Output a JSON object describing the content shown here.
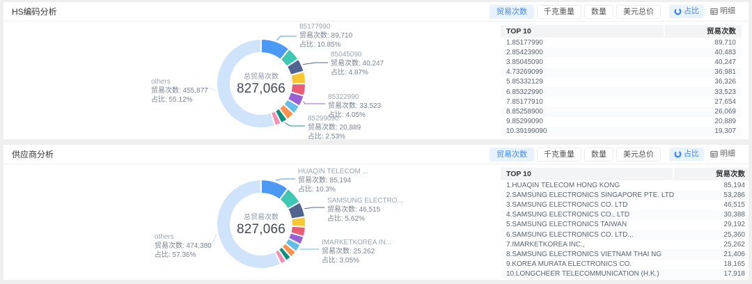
{
  "colors": {
    "accent": "#3D87F5",
    "accent_bg": "#E8F3FF",
    "others_color": "#CFE3FA",
    "palette": [
      "#4A9AF5",
      "#3EC8B4",
      "#50648F",
      "#F7C631",
      "#EB5C77",
      "#9760D3",
      "#63BEE8",
      "#F9934E",
      "#10917F",
      "#F78FB5"
    ]
  },
  "toolbar": {
    "metrics": [
      "贸易次数",
      "千克重量",
      "数量",
      "美元总价"
    ],
    "active_metric": 0,
    "views": [
      {
        "label": "占比",
        "icon": "donut-chart-icon",
        "active": true
      },
      {
        "label": "明细",
        "icon": "table-grid-icon",
        "active": false
      }
    ]
  },
  "panels": [
    {
      "title": "HS编码分析",
      "chart": {
        "center_label": "总贸易次数",
        "center_value": "827,066",
        "metric_label": "贸易次数",
        "pct_label": "占比",
        "segments": [
          {
            "name": "85177990",
            "value": 89710,
            "display_value": "89,710",
            "pct": 10.85,
            "pct_display": "10.85%",
            "color": "#4A9AF5"
          },
          {
            "name": "85423900",
            "value": 40483,
            "display_value": "40,483",
            "pct": 4.89,
            "pct_display": "4.89%",
            "color": "#3EC8B4"
          },
          {
            "name": "85045090",
            "value": 40247,
            "display_value": "40,247",
            "pct": 4.87,
            "pct_display": "4.87%",
            "color": "#50648F"
          },
          {
            "name": "73269099",
            "value": 36981,
            "display_value": "36,981",
            "pct": 4.47,
            "pct_display": "4.47%",
            "color": "#F7C631"
          },
          {
            "name": "85332129",
            "value": 36326,
            "display_value": "36,326",
            "pct": 4.39,
            "pct_display": "4.39%",
            "color": "#EB5C77"
          },
          {
            "name": "85322990",
            "value": 33523,
            "display_value": "33,523",
            "pct": 4.05,
            "pct_display": "4.05%",
            "color": "#9760D3"
          },
          {
            "name": "85177910",
            "value": 27654,
            "display_value": "27,654",
            "pct": 3.34,
            "pct_display": "3.34%",
            "color": "#63BEE8"
          },
          {
            "name": "85258900",
            "value": 26069,
            "display_value": "26,069",
            "pct": 3.15,
            "pct_display": "3.15%",
            "color": "#F9934E"
          },
          {
            "name": "85299090",
            "value": 20889,
            "display_value": "20,889",
            "pct": 2.53,
            "pct_display": "2.53%",
            "color": "#10917F"
          },
          {
            "name": "39199090",
            "value": 19307,
            "display_value": "19,307",
            "pct": 2.33,
            "pct_display": "2.33%",
            "color": "#F78FB5"
          },
          {
            "name": "others",
            "value": 455877,
            "display_value": "455,877",
            "pct": 55.12,
            "pct_display": "55.12%",
            "color": "#CFE3FA"
          }
        ],
        "callouts": [
          {
            "seg": 0,
            "display": "85177990"
          },
          {
            "seg": 2,
            "display": "85045090"
          },
          {
            "seg": 5,
            "display": "85322990"
          },
          {
            "seg": 8,
            "display": "85299090"
          },
          {
            "seg": 10,
            "display": "others"
          }
        ]
      },
      "table": {
        "header": [
          "TOP 10",
          "贸易次数"
        ],
        "rows": [
          [
            "1.85177990",
            "89,710"
          ],
          [
            "2.85423900",
            "40,483"
          ],
          [
            "3.85045090",
            "40,247"
          ],
          [
            "4.73269099",
            "36,981"
          ],
          [
            "5.85332129",
            "36,326"
          ],
          [
            "6.85322990",
            "33,523"
          ],
          [
            "7.85177910",
            "27,654"
          ],
          [
            "8.85258900",
            "26,069"
          ],
          [
            "9.85299090",
            "20,889"
          ],
          [
            "10.39199090",
            "19,307"
          ]
        ]
      }
    },
    {
      "title": "供应商分析",
      "chart": {
        "center_label": "总贸易次数",
        "center_value": "827,066",
        "metric_label": "贸易次数",
        "pct_label": "占比",
        "segments": [
          {
            "name": "HUAQIN TELECOM HONG KONG",
            "value": 85194,
            "display_value": "85,194",
            "pct": 10.3,
            "pct_display": "10.3%",
            "color": "#4A9AF5"
          },
          {
            "name": "SAMSUNG ELECTRONICS SINGAPORE PTE. LTD",
            "value": 53286,
            "display_value": "53,286",
            "pct": 6.44,
            "pct_display": "6.44%",
            "color": "#3EC8B4"
          },
          {
            "name": "SAMSUNG ELECTRONICS CO. LTD",
            "value": 46515,
            "display_value": "46,515",
            "pct": 5.62,
            "pct_display": "5.62%",
            "color": "#50648F"
          },
          {
            "name": "SAMSUNG ELECTRONICS CO., LTD",
            "value": 30388,
            "display_value": "30,388",
            "pct": 3.67,
            "pct_display": "3.67%",
            "color": "#F7C631"
          },
          {
            "name": "SAMSUNG ELECTRONICS TAIWAN",
            "value": 29192,
            "display_value": "29,192",
            "pct": 3.53,
            "pct_display": "3.53%",
            "color": "#EB5C77"
          },
          {
            "name": "SAMSUNG ELECTRONICS CO. LTD.,",
            "value": 25360,
            "display_value": "25,360",
            "pct": 3.07,
            "pct_display": "3.07%",
            "color": "#9760D3"
          },
          {
            "name": "IMARKETKOREA INC.,",
            "value": 25262,
            "display_value": "25,262",
            "pct": 3.05,
            "pct_display": "3.05%",
            "color": "#63BEE8"
          },
          {
            "name": "SAMSUNG ELECTRONICS VIETNAM THAI NG",
            "value": 21406,
            "display_value": "21,406",
            "pct": 2.59,
            "pct_display": "2.59%",
            "color": "#F9934E"
          },
          {
            "name": "KOREA MURATA ELECTRONICS CO.",
            "value": 18165,
            "display_value": "18,165",
            "pct": 2.2,
            "pct_display": "2.20%",
            "color": "#10917F"
          },
          {
            "name": "LONGCHEER TELECOMMUNICATION (H.K.)",
            "value": 17918,
            "display_value": "17,918",
            "pct": 2.17,
            "pct_display": "2.17%",
            "color": "#F78FB5"
          },
          {
            "name": "others",
            "value": 474380,
            "display_value": "474,380",
            "pct": 57.36,
            "pct_display": "57.36%",
            "color": "#CFE3FA"
          }
        ],
        "callouts": [
          {
            "seg": 0,
            "display": "HUAQIN TELECOM ..."
          },
          {
            "seg": 2,
            "display": "SAMSUNG ELECTRO..."
          },
          {
            "seg": 6,
            "display": "IMARKETKOREA IN..."
          },
          {
            "seg": 10,
            "display": "others"
          }
        ]
      },
      "table": {
        "header": [
          "TOP 10",
          "贸易次数"
        ],
        "rows": [
          [
            "1.HUAQIN TELECOM HONG KONG",
            "85,194"
          ],
          [
            "2.SAMSUNG ELECTRONICS SINGAPORE PTE. LTD",
            "53,286"
          ],
          [
            "3.SAMSUNG ELECTRONICS CO. LTD",
            "46,515"
          ],
          [
            "4.SAMSUNG ELECTRONICS CO., LTD",
            "30,388"
          ],
          [
            "5.SAMSUNG ELECTRONICS TAIWAN",
            "29,192"
          ],
          [
            "6.SAMSUNG ELECTRONICS CO. LTD.,.",
            "25,360"
          ],
          [
            "7.IMARKETKOREA INC.,",
            "25,262"
          ],
          [
            "8.SAMSUNG ELECTRONICS VIETNAM THAI NG",
            "21,406"
          ],
          [
            "9.KOREA MURATA ELECTRONICS CO.",
            "18,165"
          ],
          [
            "10.LONGCHEER TELECOMMUNICATION (H.K.)",
            "17,918"
          ]
        ]
      }
    }
  ],
  "chart_data": [
    {
      "type": "pie",
      "title": "HS编码分析",
      "total_label": "总贸易次数",
      "total": 827066,
      "categories": [
        "85177990",
        "85423900",
        "85045090",
        "73269099",
        "85332129",
        "85322990",
        "85177910",
        "85258900",
        "85299090",
        "39199090",
        "others"
      ],
      "values": [
        89710,
        40483,
        40247,
        36981,
        36326,
        33523,
        27654,
        26069,
        20889,
        19307,
        455877
      ],
      "pct": [
        10.85,
        4.89,
        4.87,
        4.47,
        4.39,
        4.05,
        3.34,
        3.15,
        2.53,
        2.33,
        55.12
      ]
    },
    {
      "type": "pie",
      "title": "供应商分析",
      "total_label": "总贸易次数",
      "total": 827066,
      "categories": [
        "HUAQIN TELECOM HONG KONG",
        "SAMSUNG ELECTRONICS SINGAPORE PTE. LTD",
        "SAMSUNG ELECTRONICS CO. LTD",
        "SAMSUNG ELECTRONICS CO., LTD",
        "SAMSUNG ELECTRONICS TAIWAN",
        "SAMSUNG ELECTRONICS CO. LTD.,",
        "IMARKETKOREA INC.,",
        "SAMSUNG ELECTRONICS VIETNAM THAI NG",
        "KOREA MURATA ELECTRONICS CO.",
        "LONGCHEER TELECOMMUNICATION (H.K.)",
        "others"
      ],
      "values": [
        85194,
        53286,
        46515,
        30388,
        29192,
        25360,
        25262,
        21406,
        18165,
        17918,
        474380
      ],
      "pct": [
        10.3,
        6.44,
        5.62,
        3.67,
        3.53,
        3.07,
        3.05,
        2.59,
        2.2,
        2.17,
        57.36
      ]
    }
  ]
}
